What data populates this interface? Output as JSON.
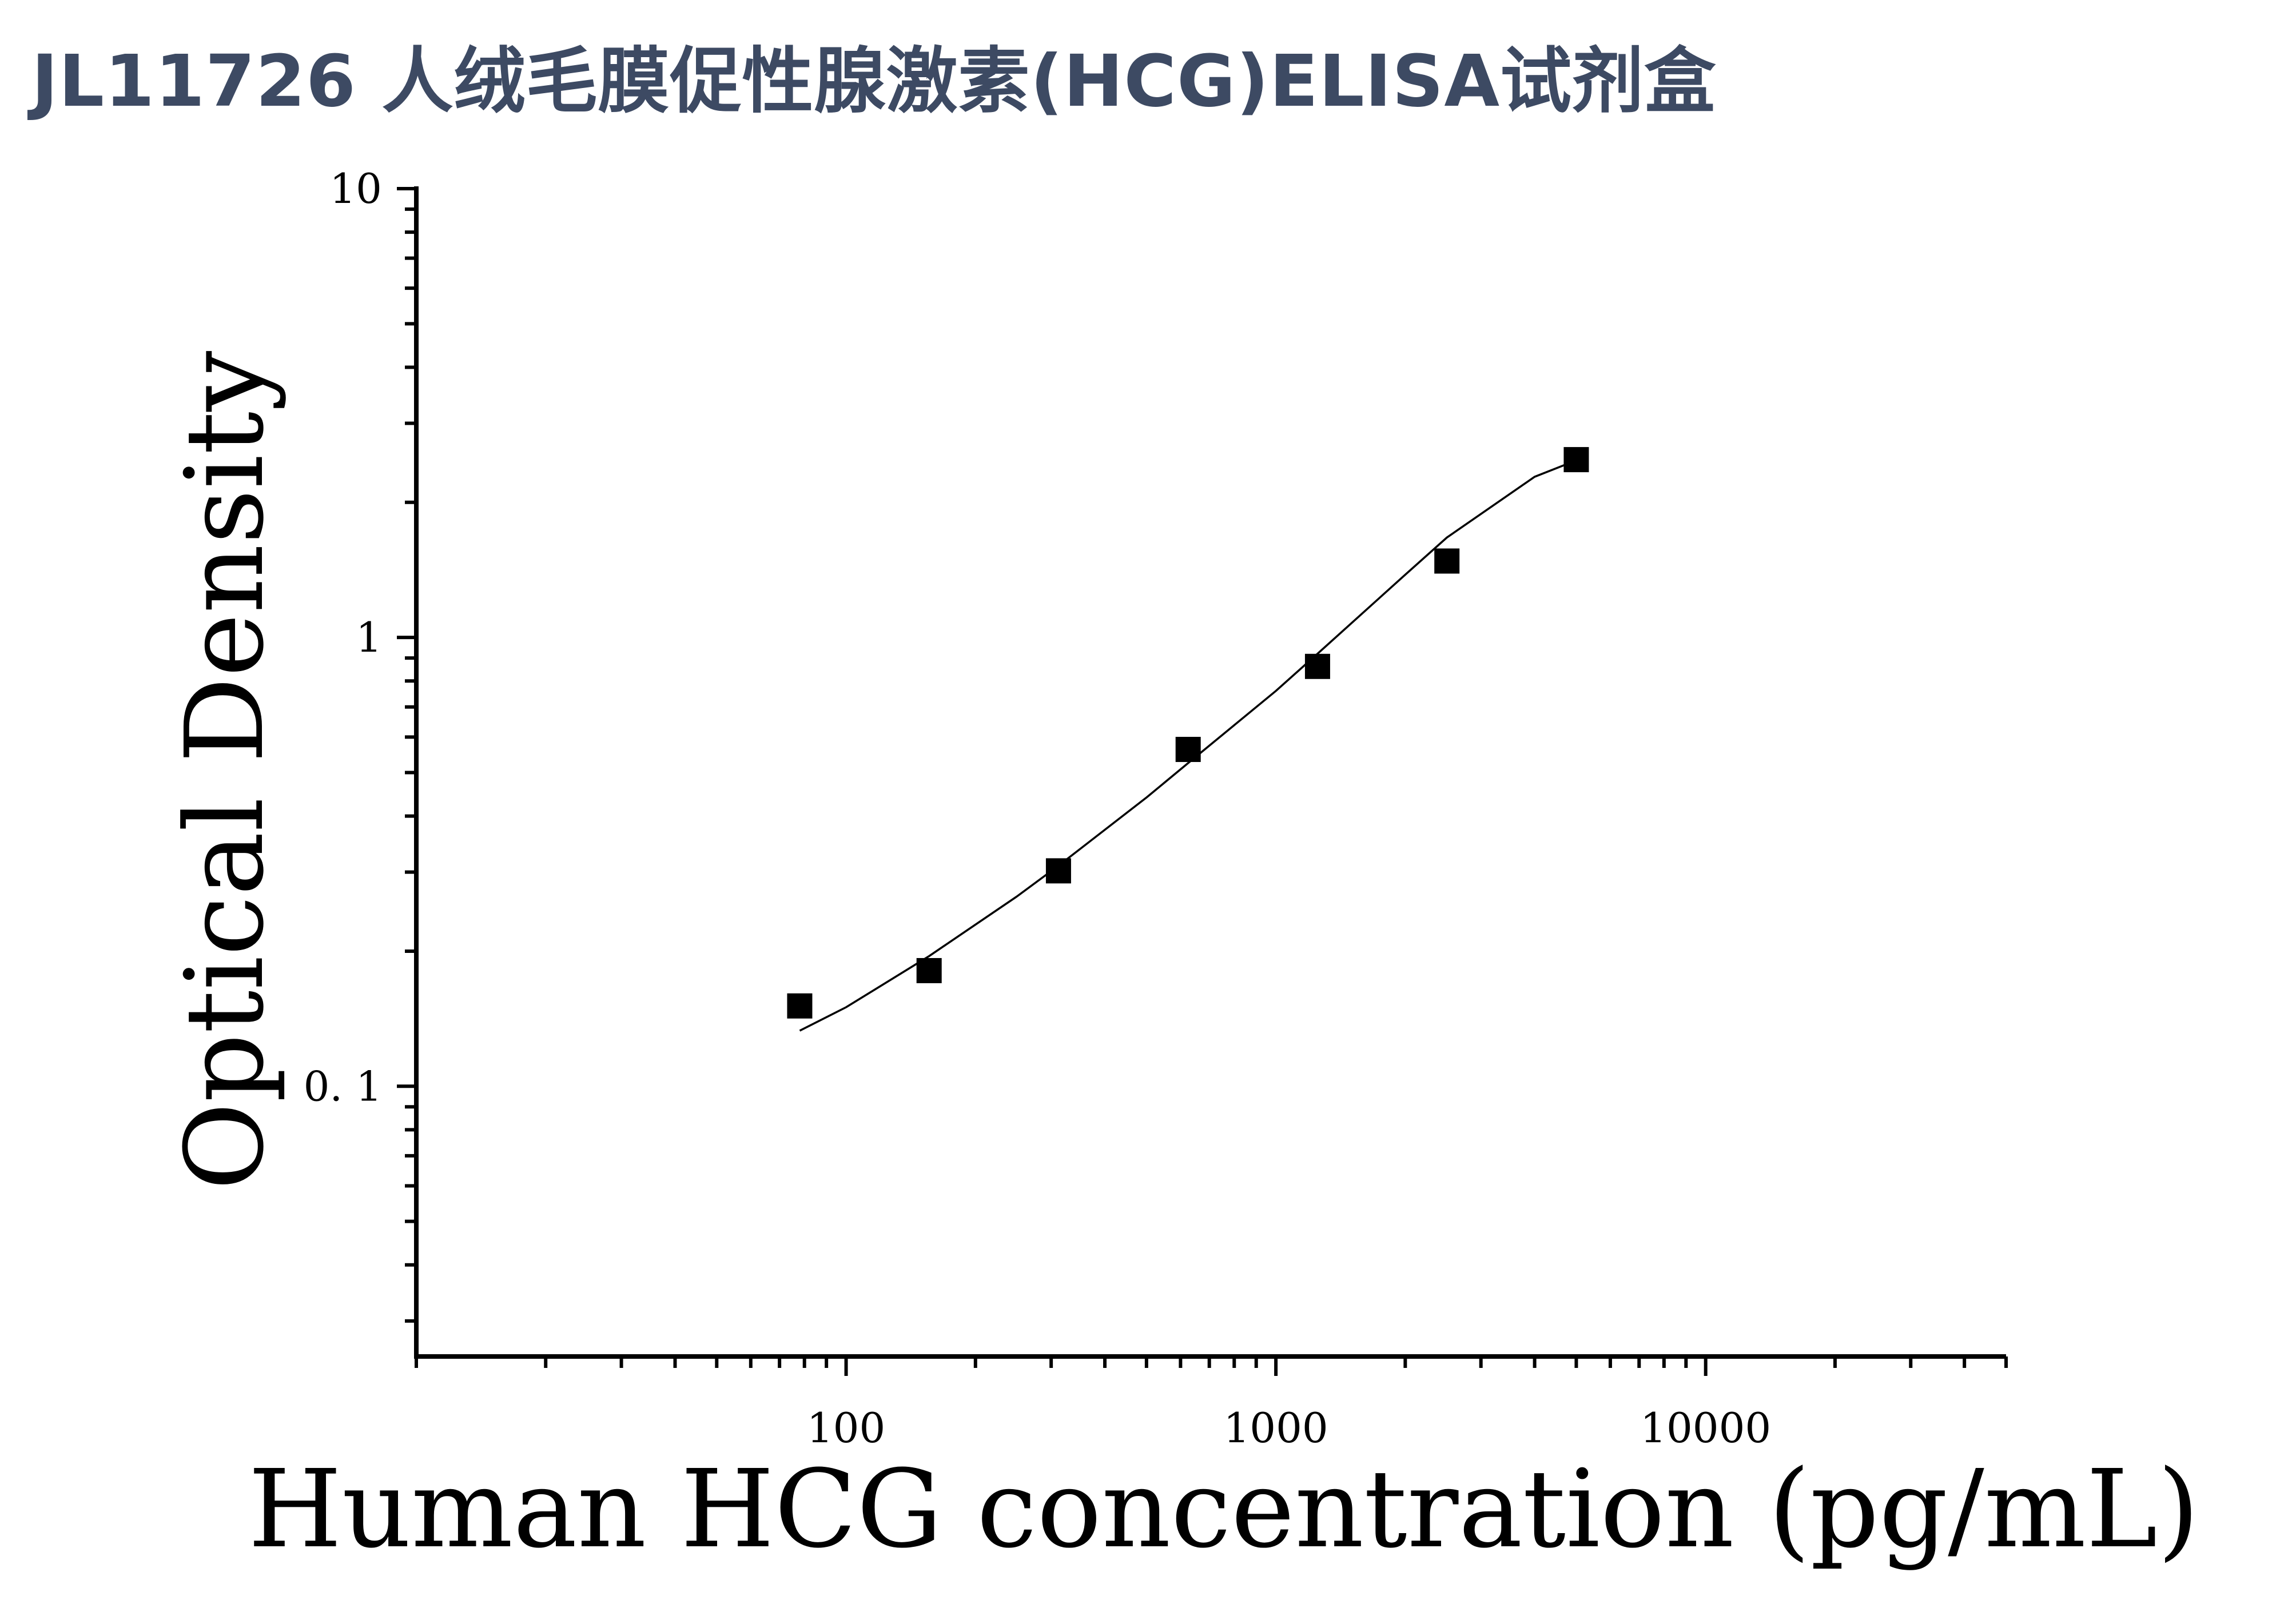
{
  "header": {
    "title": "JL11726 人绒毛膜促性腺激素(HCG)ELISA试剂盒"
  },
  "chart_data": {
    "type": "scatter",
    "xlabel": "Human HCG concentration (pg/mL)",
    "ylabel": "Optical Density",
    "x_scale": "log",
    "y_scale": "log",
    "xlim": [
      10,
      50000
    ],
    "ylim": [
      0.025,
      10
    ],
    "x_ticks": [
      {
        "value": 100,
        "label": "100"
      },
      {
        "value": 1000,
        "label": "1000"
      },
      {
        "value": 10000,
        "label": "10000"
      }
    ],
    "y_ticks": [
      {
        "value": 0.1,
        "label": "0. 1"
      },
      {
        "value": 1,
        "label": "1"
      },
      {
        "value": 10,
        "label": "10"
      }
    ],
    "grid": false,
    "series": [
      {
        "marker": "square",
        "color": "#000000",
        "x": [
          78,
          156,
          312,
          625,
          1250,
          2500,
          5000
        ],
        "y": [
          0.151,
          0.181,
          0.302,
          0.563,
          0.862,
          1.48,
          2.49
        ]
      }
    ],
    "fit_curve": {
      "color": "#000000",
      "x": [
        78,
        100,
        156,
        250,
        312,
        500,
        625,
        1000,
        1250,
        2000,
        2500,
        4000,
        5000
      ],
      "y": [
        0.133,
        0.15,
        0.195,
        0.265,
        0.31,
        0.44,
        0.525,
        0.76,
        0.92,
        1.38,
        1.67,
        2.28,
        2.48
      ]
    }
  }
}
